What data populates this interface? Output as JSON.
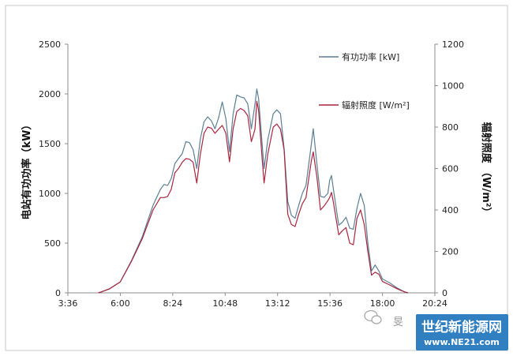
{
  "chart_data": {
    "type": "line",
    "ylabel_left": "电站有功功率（kW）",
    "ylabel_right": "辐射照度 （W/m²）",
    "x_ticks": [
      "3:36",
      "6:00",
      "8:24",
      "10:48",
      "13:12",
      "15:36",
      "18:00",
      "20:24"
    ],
    "x_range": [
      "3:36",
      "20:24"
    ],
    "y_left_range": [
      0,
      2500
    ],
    "y_left_ticks": [
      "0",
      "500",
      "1000",
      "1500",
      "2000",
      "2500"
    ],
    "y_right_range": [
      0,
      1200
    ],
    "y_right_ticks": [
      "0",
      "200",
      "400",
      "600",
      "800",
      "1000",
      "1200"
    ],
    "legend_position": "top-right",
    "grid": false,
    "series": [
      {
        "name": "有功功率 [kW]",
        "axis": "left",
        "color": "#5b7f95",
        "points": [
          [
            "5:00",
            0
          ],
          [
            "5:30",
            40
          ],
          [
            "6:00",
            110
          ],
          [
            "6:30",
            320
          ],
          [
            "7:00",
            560
          ],
          [
            "7:30",
            880
          ],
          [
            "7:50",
            1040
          ],
          [
            "8:00",
            1090
          ],
          [
            "8:10",
            1080
          ],
          [
            "8:20",
            1150
          ],
          [
            "8:30",
            1300
          ],
          [
            "8:40",
            1350
          ],
          [
            "8:50",
            1400
          ],
          [
            "9:00",
            1520
          ],
          [
            "9:10",
            1510
          ],
          [
            "9:20",
            1440
          ],
          [
            "9:30",
            1250
          ],
          [
            "9:40",
            1550
          ],
          [
            "9:50",
            1720
          ],
          [
            "10:00",
            1770
          ],
          [
            "10:10",
            1730
          ],
          [
            "10:20",
            1650
          ],
          [
            "10:30",
            1760
          ],
          [
            "10:40",
            1920
          ],
          [
            "10:50",
            1750
          ],
          [
            "11:00",
            1420
          ],
          [
            "11:10",
            1800
          ],
          [
            "11:20",
            1990
          ],
          [
            "11:30",
            1970
          ],
          [
            "11:40",
            1960
          ],
          [
            "11:50",
            1900
          ],
          [
            "12:00",
            1650
          ],
          [
            "12:10",
            1900
          ],
          [
            "12:15",
            2050
          ],
          [
            "12:20",
            1950
          ],
          [
            "12:30",
            1480
          ],
          [
            "12:35",
            1250
          ],
          [
            "12:45",
            1540
          ],
          [
            "13:00",
            1800
          ],
          [
            "13:10",
            1840
          ],
          [
            "13:20",
            1800
          ],
          [
            "13:30",
            1450
          ],
          [
            "13:40",
            920
          ],
          [
            "13:50",
            780
          ],
          [
            "14:00",
            750
          ],
          [
            "14:10",
            880
          ],
          [
            "14:20",
            1000
          ],
          [
            "14:30",
            1080
          ],
          [
            "14:45",
            1500
          ],
          [
            "14:50",
            1650
          ],
          [
            "15:00",
            1300
          ],
          [
            "15:10",
            970
          ],
          [
            "15:20",
            960
          ],
          [
            "15:30",
            1000
          ],
          [
            "15:35",
            1130
          ],
          [
            "15:40",
            1180
          ],
          [
            "15:45",
            1050
          ],
          [
            "16:00",
            680
          ],
          [
            "16:10",
            710
          ],
          [
            "16:20",
            760
          ],
          [
            "16:30",
            650
          ],
          [
            "16:40",
            640
          ],
          [
            "16:50",
            850
          ],
          [
            "17:00",
            1000
          ],
          [
            "17:10",
            880
          ],
          [
            "17:20",
            500
          ],
          [
            "17:30",
            220
          ],
          [
            "17:40",
            280
          ],
          [
            "17:50",
            220
          ],
          [
            "18:00",
            140
          ],
          [
            "18:20",
            100
          ],
          [
            "18:40",
            50
          ],
          [
            "19:00",
            10
          ],
          [
            "19:10",
            0
          ]
        ]
      },
      {
        "name": "辐射照度 [W/m²]",
        "axis": "right",
        "color": "#a8263f",
        "points": [
          [
            "5:00",
            0
          ],
          [
            "5:30",
            19
          ],
          [
            "6:00",
            53
          ],
          [
            "6:30",
            150
          ],
          [
            "7:00",
            260
          ],
          [
            "7:30",
            400
          ],
          [
            "7:50",
            460
          ],
          [
            "8:00",
            460
          ],
          [
            "8:10",
            465
          ],
          [
            "8:20",
            500
          ],
          [
            "8:30",
            580
          ],
          [
            "8:40",
            600
          ],
          [
            "8:50",
            630
          ],
          [
            "9:00",
            648
          ],
          [
            "9:10",
            645
          ],
          [
            "9:20",
            630
          ],
          [
            "9:30",
            530
          ],
          [
            "9:40",
            670
          ],
          [
            "9:50",
            770
          ],
          [
            "10:00",
            800
          ],
          [
            "10:10",
            795
          ],
          [
            "10:20",
            770
          ],
          [
            "10:30",
            790
          ],
          [
            "10:40",
            808
          ],
          [
            "10:50",
            770
          ],
          [
            "11:00",
            632
          ],
          [
            "11:10",
            792
          ],
          [
            "11:20",
            875
          ],
          [
            "11:30",
            890
          ],
          [
            "11:40",
            880
          ],
          [
            "11:50",
            855
          ],
          [
            "12:00",
            730
          ],
          [
            "12:10",
            790
          ],
          [
            "12:15",
            925
          ],
          [
            "12:20",
            880
          ],
          [
            "12:30",
            640
          ],
          [
            "12:35",
            530
          ],
          [
            "12:45",
            670
          ],
          [
            "13:00",
            800
          ],
          [
            "13:10",
            815
          ],
          [
            "13:20",
            790
          ],
          [
            "13:30",
            690
          ],
          [
            "13:40",
            380
          ],
          [
            "13:50",
            330
          ],
          [
            "14:00",
            320
          ],
          [
            "14:10",
            380
          ],
          [
            "14:20",
            430
          ],
          [
            "14:30",
            460
          ],
          [
            "14:45",
            640
          ],
          [
            "14:50",
            680
          ],
          [
            "15:00",
            560
          ],
          [
            "15:10",
            400
          ],
          [
            "15:20",
            420
          ],
          [
            "15:30",
            445
          ],
          [
            "15:35",
            460
          ],
          [
            "15:40",
            485
          ],
          [
            "15:45",
            440
          ],
          [
            "16:00",
            280
          ],
          [
            "16:10",
            300
          ],
          [
            "16:20",
            315
          ],
          [
            "16:30",
            240
          ],
          [
            "16:40",
            232
          ],
          [
            "16:50",
            360
          ],
          [
            "17:00",
            400
          ],
          [
            "17:10",
            330
          ],
          [
            "17:20",
            200
          ],
          [
            "17:30",
            85
          ],
          [
            "17:40",
            100
          ],
          [
            "17:50",
            90
          ],
          [
            "18:00",
            55
          ],
          [
            "18:20",
            38
          ],
          [
            "18:40",
            20
          ],
          [
            "19:00",
            5
          ],
          [
            "19:10",
            0
          ]
        ]
      }
    ]
  },
  "watermark": {
    "wechat_text": "旻",
    "brand_main": "世纪新能源网",
    "brand_url": "www.NE21.com",
    "brand_color": "#2f7fc1"
  }
}
